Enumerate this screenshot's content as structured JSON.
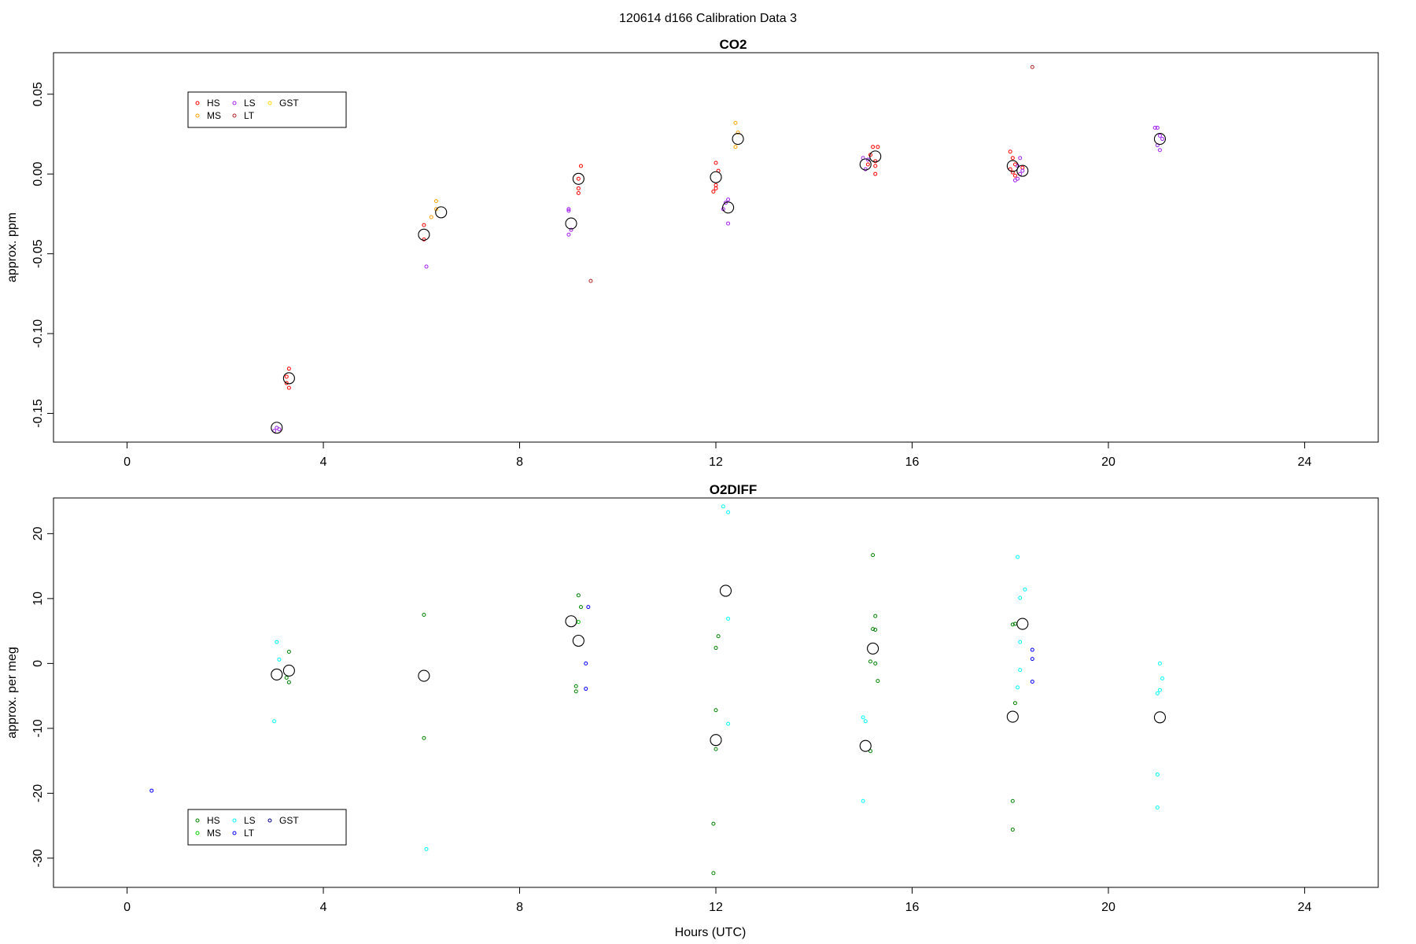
{
  "figure": {
    "title": "120614   d166   Calibration Data 3",
    "xlabel": "Hours (UTC)"
  },
  "colors": {
    "HS": "#ff0000",
    "MS": "#ffa500",
    "LS": "#a020f0",
    "LT": "#b22222",
    "GST": "#ffd700",
    "HS2": "#008000",
    "MS2": "#00cd00",
    "LS2": "#00ffff",
    "LT2": "#0000ff",
    "GST2": "#00008b",
    "mean": "#000000"
  },
  "chart_data": [
    {
      "type": "scatter",
      "title": "CO2",
      "ylabel": "approx. ppm",
      "xlim": [
        -1.5,
        25.5
      ],
      "ylim": [
        -0.168,
        0.076
      ],
      "xticks": [
        0,
        4,
        8,
        12,
        16,
        20,
        24
      ],
      "yticks": [
        0.05,
        0.0,
        -0.05,
        -0.1,
        -0.15
      ],
      "ytick_labels": [
        "0.05",
        "0.00",
        "-0.05",
        "-0.10",
        "-0.15"
      ],
      "legend": {
        "position": "top-left",
        "entries": [
          {
            "name": "HS",
            "color_key": "HS"
          },
          {
            "name": "MS",
            "color_key": "MS"
          },
          {
            "name": "LS",
            "color_key": "LS"
          },
          {
            "name": "LT",
            "color_key": "LT"
          },
          {
            "name": "GST",
            "color_key": "GST"
          }
        ]
      },
      "series": [
        {
          "name": "HS",
          "color_key": "HS",
          "points": [
            [
              3.25,
              -0.127
            ],
            [
              3.3,
              -0.122
            ],
            [
              3.25,
              -0.131
            ],
            [
              3.3,
              -0.134
            ],
            [
              6.05,
              -0.032
            ],
            [
              6.05,
              -0.041
            ],
            [
              9.2,
              -0.003
            ],
            [
              9.25,
              0.005
            ],
            [
              9.2,
              -0.009
            ],
            [
              9.2,
              -0.012
            ],
            [
              12.0,
              0.007
            ],
            [
              12.05,
              0.002
            ],
            [
              12.0,
              -0.007
            ],
            [
              11.95,
              -0.011
            ],
            [
              12.0,
              -0.009
            ],
            [
              15.15,
              0.012
            ],
            [
              15.2,
              0.017
            ],
            [
              15.3,
              0.017
            ],
            [
              15.25,
              0.008
            ],
            [
              15.25,
              0.005
            ],
            [
              15.25,
              0.0
            ],
            [
              15.1,
              0.006
            ],
            [
              18.0,
              0.014
            ],
            [
              18.05,
              0.01
            ],
            [
              18.1,
              0.006
            ],
            [
              18.05,
              0.001
            ],
            [
              18.1,
              -0.001
            ],
            [
              18.0,
              0.003
            ],
            [
              18.25,
              0.004
            ]
          ]
        },
        {
          "name": "MS",
          "color_key": "MS",
          "points": [
            [
              6.3,
              -0.017
            ],
            [
              6.2,
              -0.027
            ],
            [
              6.3,
              -0.022
            ],
            [
              12.4,
              0.032
            ],
            [
              12.45,
              0.026
            ],
            [
              12.4,
              0.017
            ]
          ]
        },
        {
          "name": "LS",
          "color_key": "LS",
          "points": [
            [
              3.05,
              -0.159
            ],
            [
              3.1,
              -0.16
            ],
            [
              3.0,
              -0.161
            ],
            [
              6.1,
              -0.058
            ],
            [
              9.0,
              -0.022
            ],
            [
              9.0,
              -0.023
            ],
            [
              9.05,
              -0.035
            ],
            [
              9.0,
              -0.038
            ],
            [
              12.2,
              -0.018
            ],
            [
              12.25,
              -0.016
            ],
            [
              12.25,
              -0.031
            ],
            [
              12.15,
              -0.022
            ],
            [
              15.0,
              0.01
            ],
            [
              15.05,
              0.003
            ],
            [
              15.1,
              0.009
            ],
            [
              18.2,
              0.01
            ],
            [
              18.15,
              0.005
            ],
            [
              18.2,
              0.0
            ],
            [
              18.15,
              -0.003
            ],
            [
              18.1,
              -0.004
            ],
            [
              18.25,
              0.002
            ],
            [
              20.95,
              0.029
            ],
            [
              21.0,
              0.029
            ],
            [
              21.05,
              0.024
            ],
            [
              21.0,
              0.018
            ],
            [
              21.05,
              0.015
            ],
            [
              21.1,
              0.022
            ]
          ]
        },
        {
          "name": "LT",
          "color_key": "LT",
          "points": [
            [
              9.45,
              -0.067
            ],
            [
              18.45,
              0.067
            ]
          ]
        },
        {
          "name": "means",
          "color_key": "mean",
          "size": "large",
          "points": [
            [
              3.05,
              -0.159
            ],
            [
              3.3,
              -0.128
            ],
            [
              6.05,
              -0.038
            ],
            [
              6.4,
              -0.024
            ],
            [
              9.05,
              -0.031
            ],
            [
              9.2,
              -0.003
            ],
            [
              12.0,
              -0.002
            ],
            [
              12.25,
              -0.021
            ],
            [
              12.45,
              0.022
            ],
            [
              15.05,
              0.006
            ],
            [
              15.25,
              0.011
            ],
            [
              18.05,
              0.005
            ],
            [
              18.25,
              0.002
            ],
            [
              21.05,
              0.022
            ]
          ]
        }
      ]
    },
    {
      "type": "scatter",
      "title": "O2DIFF",
      "ylabel": "approx. per meg",
      "xlim": [
        -1.5,
        25.5
      ],
      "ylim": [
        -34.5,
        25.5
      ],
      "xticks": [
        0,
        4,
        8,
        12,
        16,
        20,
        24
      ],
      "yticks": [
        20,
        10,
        0,
        -10,
        -20,
        -30
      ],
      "ytick_labels": [
        "20",
        "10",
        "0",
        "-10",
        "-20",
        "-30"
      ],
      "legend": {
        "position": "bottom-left",
        "entries": [
          {
            "name": "HS",
            "color_key": "HS2"
          },
          {
            "name": "MS",
            "color_key": "MS2"
          },
          {
            "name": "LS",
            "color_key": "LS2"
          },
          {
            "name": "LT",
            "color_key": "LT2"
          },
          {
            "name": "GST",
            "color_key": "GST2"
          }
        ]
      },
      "series": [
        {
          "name": "HS",
          "color_key": "HS2",
          "points": [
            [
              3.3,
              1.8
            ],
            [
              3.3,
              -2.9
            ],
            [
              3.25,
              -2.2
            ],
            [
              6.05,
              7.5
            ],
            [
              6.05,
              -11.5
            ],
            [
              9.2,
              10.5
            ],
            [
              9.25,
              8.7
            ],
            [
              9.15,
              -3.5
            ],
            [
              9.15,
              -4.3
            ],
            [
              12.05,
              4.2
            ],
            [
              12.0,
              2.4
            ],
            [
              12.0,
              -7.2
            ],
            [
              12.0,
              -13.2
            ],
            [
              11.95,
              -24.7
            ],
            [
              11.95,
              -32.3
            ],
            [
              15.2,
              16.7
            ],
            [
              15.25,
              7.3
            ],
            [
              15.2,
              5.3
            ],
            [
              15.25,
              5.2
            ],
            [
              15.15,
              0.3
            ],
            [
              15.25,
              0.0
            ],
            [
              15.3,
              -2.7
            ],
            [
              15.15,
              -13.5
            ],
            [
              18.05,
              6.0
            ],
            [
              18.1,
              6.1
            ],
            [
              18.1,
              -6.1
            ],
            [
              18.05,
              -21.2
            ],
            [
              18.05,
              -25.6
            ]
          ]
        },
        {
          "name": "MS",
          "color_key": "MS2",
          "points": [
            [
              9.2,
              6.4
            ]
          ]
        },
        {
          "name": "LS",
          "color_key": "LS2",
          "points": [
            [
              3.05,
              3.3
            ],
            [
              3.1,
              0.6
            ],
            [
              3.0,
              -8.9
            ],
            [
              6.1,
              -28.6
            ],
            [
              12.15,
              24.2
            ],
            [
              12.25,
              23.3
            ],
            [
              12.25,
              6.9
            ],
            [
              12.25,
              -9.3
            ],
            [
              15.0,
              -8.3
            ],
            [
              15.05,
              -8.9
            ],
            [
              15.0,
              -21.2
            ],
            [
              18.15,
              16.4
            ],
            [
              18.2,
              10.1
            ],
            [
              18.3,
              11.4
            ],
            [
              18.2,
              3.3
            ],
            [
              18.2,
              -1.0
            ],
            [
              18.15,
              -3.7
            ],
            [
              21.05,
              0.0
            ],
            [
              21.1,
              -2.3
            ],
            [
              21.05,
              -4.1
            ],
            [
              21.0,
              -4.6
            ],
            [
              21.0,
              -17.1
            ],
            [
              21.0,
              -22.2
            ]
          ]
        },
        {
          "name": "LT",
          "color_key": "LT2",
          "points": [
            [
              0.5,
              -19.6
            ],
            [
              9.4,
              8.7
            ],
            [
              9.35,
              0.0
            ],
            [
              9.35,
              -3.9
            ],
            [
              18.45,
              2.1
            ],
            [
              18.45,
              0.7
            ],
            [
              18.45,
              -2.8
            ]
          ]
        },
        {
          "name": "means",
          "color_key": "mean",
          "size": "large",
          "points": [
            [
              3.05,
              -1.7
            ],
            [
              3.3,
              -1.1
            ],
            [
              6.05,
              -1.9
            ],
            [
              9.05,
              6.5
            ],
            [
              9.2,
              3.5
            ],
            [
              12.0,
              -11.8
            ],
            [
              12.2,
              11.2
            ],
            [
              15.05,
              -12.7
            ],
            [
              15.2,
              2.3
            ],
            [
              18.05,
              -8.2
            ],
            [
              18.25,
              6.1
            ],
            [
              21.05,
              -8.3
            ]
          ]
        }
      ]
    }
  ]
}
